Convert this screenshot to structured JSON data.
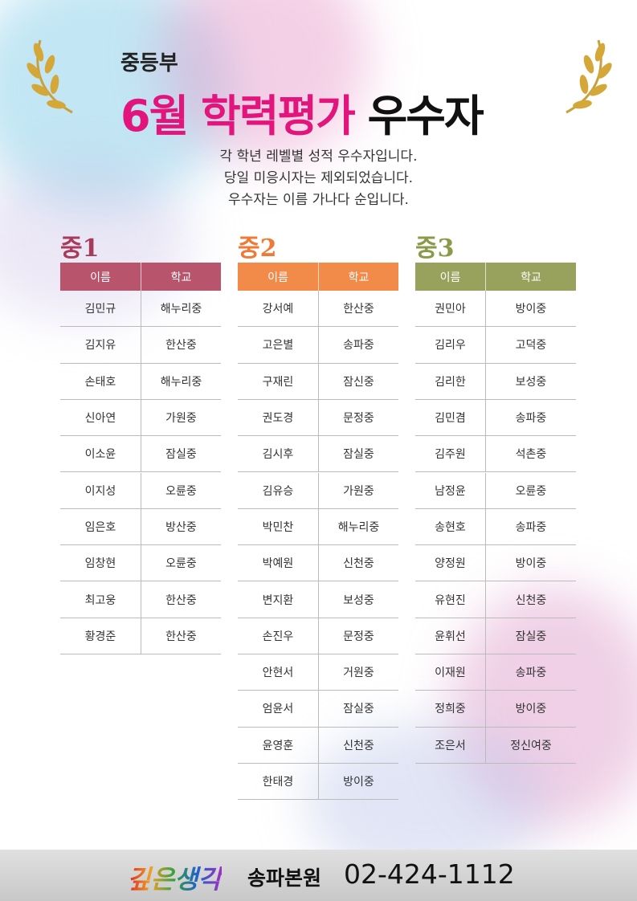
{
  "header": {
    "subtitle": "중등부",
    "title": [
      "6월",
      "학력평가",
      "우수자"
    ]
  },
  "description": [
    "각 학년 레벨별 성적 우수자입니다.",
    "당일 미응시자는 제외되었습니다.",
    "우수자는 이름 가나다 순입니다."
  ],
  "tables": [
    {
      "label": "중1",
      "color": "#b8546c",
      "labelColor": "#a83a5a",
      "columns": [
        "이름",
        "학교"
      ],
      "rows": [
        [
          "김민규",
          "해누리중"
        ],
        [
          "김지유",
          "한산중"
        ],
        [
          "손태호",
          "해누리중"
        ],
        [
          "신아연",
          "가원중"
        ],
        [
          "이소윤",
          "잠실중"
        ],
        [
          "이지성",
          "오륜중"
        ],
        [
          "임은호",
          "방산중"
        ],
        [
          "임창현",
          "오륜중"
        ],
        [
          "최고웅",
          "한산중"
        ],
        [
          "황경준",
          "한산중"
        ]
      ]
    },
    {
      "label": "중2",
      "color": "#f28a4a",
      "labelColor": "#ee7a38",
      "columns": [
        "이름",
        "학교"
      ],
      "rows": [
        [
          "강서예",
          "한산중"
        ],
        [
          "고은별",
          "송파중"
        ],
        [
          "구재린",
          "잠신중"
        ],
        [
          "권도경",
          "문정중"
        ],
        [
          "김시후",
          "잠실중"
        ],
        [
          "김유승",
          "가원중"
        ],
        [
          "박민찬",
          "해누리중"
        ],
        [
          "박예원",
          "신천중"
        ],
        [
          "변지환",
          "보성중"
        ],
        [
          "손진우",
          "문정중"
        ],
        [
          "안현서",
          "거원중"
        ],
        [
          "엄윤서",
          "잠실중"
        ],
        [
          "윤영훈",
          "신천중"
        ],
        [
          "한태경",
          "방이중"
        ]
      ]
    },
    {
      "label": "중3",
      "color": "#98a25c",
      "labelColor": "#8a9a48",
      "columns": [
        "이름",
        "학교"
      ],
      "rows": [
        [
          "권민아",
          "방이중"
        ],
        [
          "김리우",
          "고덕중"
        ],
        [
          "김리한",
          "보성중"
        ],
        [
          "김민겸",
          "송파중"
        ],
        [
          "김주원",
          "석촌중"
        ],
        [
          "남정윤",
          "오륜중"
        ],
        [
          "송현호",
          "송파중"
        ],
        [
          "양정원",
          "방이중"
        ],
        [
          "유현진",
          "신천중"
        ],
        [
          "윤휘선",
          "잠실중"
        ],
        [
          "이재원",
          "송파중"
        ],
        [
          "정희중",
          "방이중"
        ],
        [
          "조은서",
          "정신여중"
        ]
      ]
    }
  ],
  "footer": {
    "brand": "깊은생각",
    "branch": "송파본원",
    "phone": "02-424-1112"
  }
}
